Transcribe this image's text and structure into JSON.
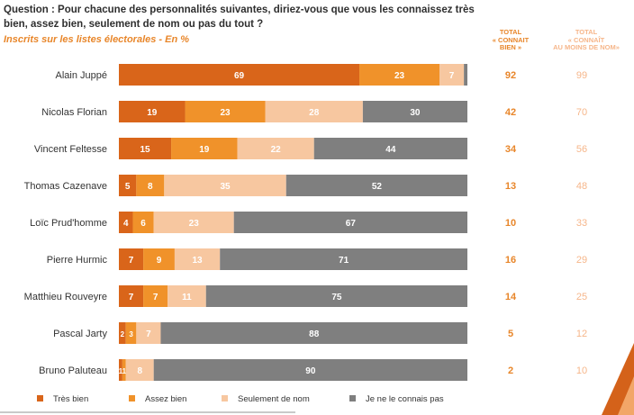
{
  "question": "Question : Pour chacune des personnalités suivantes, diriez-vous que vous les connaissez très bien, assez bien, seulement de nom ou pas du tout ?",
  "subtitle": "Inscrits sur les listes électorales - En %",
  "columns": {
    "total_connait_bien": "TOTAL\n« CONNAIT\nBIEN »",
    "total_connait_au_moins_de_nom": "TOTAL\n« CONNAÎT\nAU MOINS DE NOM»"
  },
  "colors": {
    "tres_bien": "#d9651a",
    "assez_bien": "#f0922a",
    "seulement_de_nom": "#f7c7a0",
    "ne_connais_pas": "#7f7f7f",
    "col1_text": "#e8862a",
    "col2_text": "#f6b68a",
    "label_text": "#333333"
  },
  "chart_data": {
    "type": "bar",
    "orientation": "horizontal",
    "stacked": true,
    "xlim": [
      0,
      100
    ],
    "categories": [
      "Alain Juppé",
      "Nicolas Florian",
      "Vincent Feltesse",
      "Thomas Cazenave",
      "Loïc Prud'homme",
      "Pierre Hurmic",
      "Matthieu Rouveyre",
      "Pascal Jarty",
      "Bruno Paluteau"
    ],
    "series": [
      {
        "name": "Très bien",
        "values": [
          69,
          19,
          15,
          5,
          4,
          7,
          7,
          2,
          1
        ]
      },
      {
        "name": "Assez bien",
        "values": [
          23,
          23,
          19,
          8,
          6,
          9,
          7,
          3,
          1
        ]
      },
      {
        "name": "Seulement de nom",
        "values": [
          7,
          28,
          22,
          35,
          23,
          13,
          11,
          7,
          8
        ]
      },
      {
        "name": "Je ne le connais pas",
        "values": [
          1,
          30,
          44,
          52,
          67,
          71,
          75,
          88,
          90
        ]
      }
    ],
    "data_labels": [
      [
        "69",
        "23",
        "7",
        ""
      ],
      [
        "19",
        "23",
        "28",
        "30"
      ],
      [
        "15",
        "19",
        "22",
        "44"
      ],
      [
        "5",
        "8",
        "35",
        "52"
      ],
      [
        "4",
        "6",
        "23",
        "67"
      ],
      [
        "7",
        "9",
        "13",
        "71"
      ],
      [
        "7",
        "7",
        "11",
        "75"
      ],
      [
        "2",
        "3",
        "7",
        "88"
      ],
      [
        "1",
        "1",
        "8",
        "90"
      ]
    ],
    "total_connait_bien": [
      92,
      42,
      34,
      13,
      10,
      16,
      14,
      5,
      2
    ],
    "total_connait_au_moins_de_nom": [
      99,
      70,
      56,
      48,
      33,
      29,
      25,
      12,
      10
    ],
    "legend_position": "bottom"
  }
}
